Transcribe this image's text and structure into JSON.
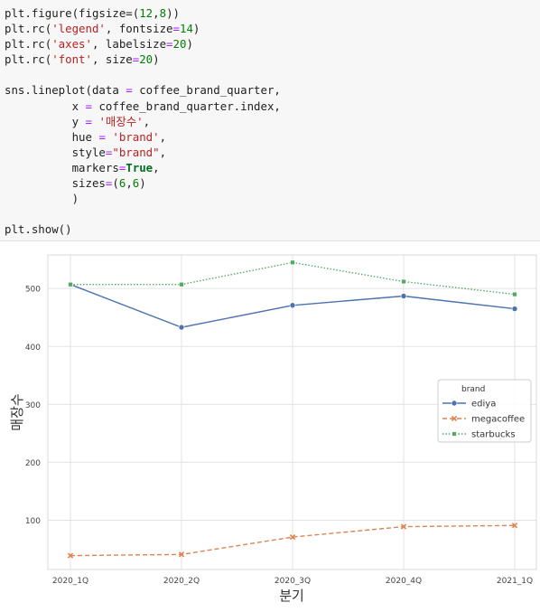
{
  "code_cell": {
    "lines": [
      [
        {
          "t": "plt.figure(figsize="
        },
        {
          "t": "(",
          "c": ""
        },
        {
          "t": "12",
          "c": "num"
        },
        {
          "t": ","
        },
        {
          "t": "8",
          "c": "num"
        },
        {
          "t": "))"
        }
      ],
      [
        {
          "t": "plt.rc("
        },
        {
          "t": "'legend'",
          "c": "str"
        },
        {
          "t": ", fontsize"
        },
        {
          "t": "=",
          "c": "op"
        },
        {
          "t": "14",
          "c": "num"
        },
        {
          "t": ")"
        }
      ],
      [
        {
          "t": "plt.rc("
        },
        {
          "t": "'axes'",
          "c": "str"
        },
        {
          "t": ", labelsize"
        },
        {
          "t": "=",
          "c": "op"
        },
        {
          "t": "20",
          "c": "num"
        },
        {
          "t": ")"
        }
      ],
      [
        {
          "t": "plt.rc("
        },
        {
          "t": "'font'",
          "c": "str"
        },
        {
          "t": ", size"
        },
        {
          "t": "=",
          "c": "op"
        },
        {
          "t": "20",
          "c": "num"
        },
        {
          "t": ")"
        }
      ],
      [],
      [
        {
          "t": "sns.lineplot(data "
        },
        {
          "t": "=",
          "c": "op"
        },
        {
          "t": " coffee_brand_quarter,"
        }
      ],
      [
        {
          "t": "          x "
        },
        {
          "t": "=",
          "c": "op"
        },
        {
          "t": " coffee_brand_quarter.index,"
        }
      ],
      [
        {
          "t": "          y "
        },
        {
          "t": "=",
          "c": "op"
        },
        {
          "t": " "
        },
        {
          "t": "'매장수'",
          "c": "str"
        },
        {
          "t": ","
        }
      ],
      [
        {
          "t": "          hue "
        },
        {
          "t": "=",
          "c": "op"
        },
        {
          "t": " "
        },
        {
          "t": "'brand'",
          "c": "str"
        },
        {
          "t": ","
        }
      ],
      [
        {
          "t": "          style"
        },
        {
          "t": "=",
          "c": "op"
        },
        {
          "t": "\"brand\"",
          "c": "str"
        },
        {
          "t": ","
        }
      ],
      [
        {
          "t": "          markers"
        },
        {
          "t": "=",
          "c": "op"
        },
        {
          "t": "True",
          "c": "kw"
        },
        {
          "t": ","
        }
      ],
      [
        {
          "t": "          sizes"
        },
        {
          "t": "=",
          "c": "op"
        },
        {
          "t": "("
        },
        {
          "t": "6",
          "c": "num"
        },
        {
          "t": ","
        },
        {
          "t": "6",
          "c": "num"
        },
        {
          "t": ")"
        }
      ],
      [
        {
          "t": "          )"
        }
      ],
      [],
      [
        {
          "t": "plt.show()"
        }
      ]
    ]
  },
  "chart_data": {
    "type": "line",
    "categories": [
      "2020_1Q",
      "2020_2Q",
      "2020_3Q",
      "2020_4Q",
      "2021_1Q"
    ],
    "series": [
      {
        "name": "ediya",
        "values": [
          507,
          433,
          471,
          487,
          465
        ],
        "color": "#4c72b0",
        "style": "solid",
        "marker": "circle"
      },
      {
        "name": "megacoffee",
        "values": [
          39,
          41,
          71,
          89,
          91
        ],
        "color": "#dd8452",
        "style": "dashed",
        "marker": "x"
      },
      {
        "name": "starbucks",
        "values": [
          507,
          507,
          545,
          512,
          490
        ],
        "color": "#55a868",
        "style": "dotted",
        "marker": "square"
      }
    ],
    "xlabel": "분기",
    "ylabel": "매장수",
    "ylim": [
      15,
      558
    ],
    "yticks": [
      100,
      200,
      300,
      400,
      500
    ],
    "grid": true,
    "legend": {
      "title": "brand",
      "placement": "center-right"
    }
  }
}
